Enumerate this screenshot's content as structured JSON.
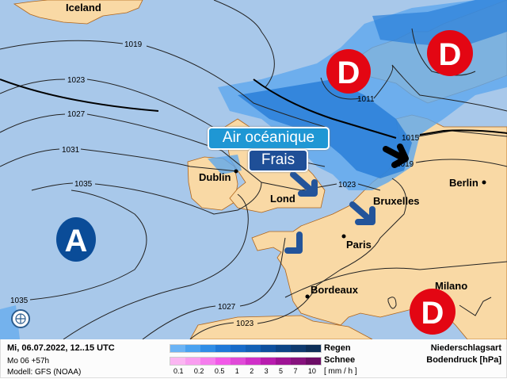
{
  "map": {
    "places": {
      "iceland": "Iceland",
      "dublin": "Dublin",
      "london": "Lond",
      "bruxelles": "Bruxelles",
      "paris": "Paris",
      "berlin": "Berlin",
      "bordeaux": "Bordeaux",
      "milano": "Milano"
    },
    "isobars": {
      "a": "1019",
      "b": "1023",
      "c": "1027",
      "d": "1031",
      "e": "1035",
      "f": "1035",
      "g": "1027",
      "h": "1023",
      "i": "1023",
      "j": "1011",
      "k": "1015",
      "l": "1019"
    },
    "pressure_systems": {
      "low1": "D",
      "low2": "D",
      "low3": "D",
      "high": "A"
    },
    "callouts": {
      "air": "Air océanique",
      "frais": "Frais"
    },
    "colors": {
      "sea": "#a8c8ea",
      "land": "#f9d9a5",
      "low": "#e30613",
      "high": "#0a4c98",
      "rain": "#2a7fd8"
    }
  },
  "footer": {
    "datetime": "Mi, 06.07.2022, 12..15 UTC",
    "run": "Mo 06 +57h",
    "model": "Modell: GFS (NOAA)",
    "rain_label": "Regen",
    "snow_label": "Schnee",
    "unit": "[ mm / h ]",
    "ticks": [
      "0.1",
      "0.2",
      "0.5",
      "1",
      "2",
      "3",
      "5",
      "7",
      "10"
    ],
    "type_label": "Niederschlagsart",
    "pressure_label": "Bodendruck [hPa]",
    "rain_colors": [
      "#6cb4f5",
      "#4aa2f0",
      "#2f8de6",
      "#1f78d8",
      "#176bc9",
      "#1260b5",
      "#0d4f9e",
      "#0c4486",
      "#0f3a6e",
      "#0e2f58"
    ],
    "snow_colors": [
      "#fbb6f2",
      "#f99df0",
      "#f57ded",
      "#f25ae8",
      "#e04ad8",
      "#d030c8",
      "#b81cae",
      "#9e1394",
      "#86127d",
      "#6c0d66"
    ]
  }
}
